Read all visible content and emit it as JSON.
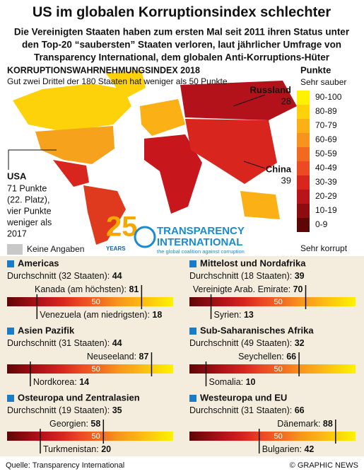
{
  "header": {
    "title": "US im globalen Korruptionsindex schlechter",
    "subtitle_lines": [
      "Die Vereinigten Staaten haben zum ersten Mal seit 2011 ihren Status unter",
      "den Top-20 “saubersten” Staaten verloren, laut jährlicher Umfrage von",
      "Transparency International, dem globalen Anti-Korruptions-Hüter"
    ]
  },
  "map": {
    "title": "KORRUPTIONSWAHRNEHMUNGSINDEX 2018",
    "subtitle": "Gut zwei Drittel der 180 Staaten hat weniger als 50 Punkte",
    "callouts": {
      "russia": {
        "name": "Russland",
        "score": "28"
      },
      "china": {
        "name": "China",
        "score": "39"
      },
      "usa": {
        "name": "USA",
        "lines": [
          "71 Punkte",
          "(22. Platz),",
          "vier Punkte",
          "weniger als",
          "2017"
        ]
      }
    },
    "no_data": {
      "label": "Keine Angaben",
      "color": "#c8c8c8"
    },
    "logo": {
      "number": "25",
      "years": "YEARS",
      "line1": "TRANSPARENCY",
      "line2": "INTERNATIONAL",
      "tagline": "the global coalition against corruption"
    }
  },
  "legend": {
    "title": "Punkte",
    "top_label": "Sehr sauber",
    "bottom_label": "Sehr korrupt",
    "items": [
      {
        "label": "90-100",
        "color": "#fff200"
      },
      {
        "label": "80-89",
        "color": "#fdd20a"
      },
      {
        "label": "70-79",
        "color": "#fbb016"
      },
      {
        "label": "60-69",
        "color": "#f7941d"
      },
      {
        "label": "50-59",
        "color": "#f26a21"
      },
      {
        "label": "40-49",
        "color": "#ec4a24"
      },
      {
        "label": "30-39",
        "color": "#d8261f"
      },
      {
        "label": "20-29",
        "color": "#b8151b"
      },
      {
        "label": "10-19",
        "color": "#8e0c10"
      },
      {
        "label": "0-9",
        "color": "#5e0606"
      }
    ]
  },
  "gauge_range": [
    0,
    100
  ],
  "gauge_mid": 50,
  "regions": [
    {
      "name": "Americas",
      "average_label": "Durchschnitt (32 Staaten): ",
      "average": 44,
      "high_label": "Kanada (am höchsten): ",
      "high": 81,
      "low_label": "Venezuela (am niedrigsten): ",
      "low": 18
    },
    {
      "name": "Mittelost und Nordafrika",
      "average_label": "Durchschnitt (18 Staaten): ",
      "average": 39,
      "high_label": "Vereinigte Arab. Emirate: ",
      "high": 70,
      "low_label": "Syrien: ",
      "low": 13
    },
    {
      "name": "Asien Pazifik",
      "average_label": "Durchschnitt (31 Staaten): ",
      "average": 44,
      "high_label": "Neuseeland: ",
      "high": 87,
      "low_label": "Nordkorea: ",
      "low": 14
    },
    {
      "name": "Sub-Saharanisches Afrika",
      "average_label": "Durchschnitt (49 Staaten): ",
      "average": 32,
      "high_label": "Seychellen: ",
      "high": 66,
      "low_label": "Somalia: ",
      "low": 10
    },
    {
      "name": "Osteuropa und Zentralasien",
      "average_label": "Durchschnitt (19 Staaten): ",
      "average": 35,
      "high_label": "Georgien: ",
      "high": 58,
      "low_label": "Turkmenistan: ",
      "low": 20
    },
    {
      "name": "Westeuropa und EU",
      "average_label": "Durchschnitt (31 Staaten): ",
      "average": 66,
      "high_label": "Dänemark: ",
      "high": 88,
      "low_label": "Bulgarien: ",
      "low": 42
    }
  ],
  "footer": {
    "source": "Quelle: Transparency International",
    "credit": "© GRAPHIC NEWS"
  }
}
